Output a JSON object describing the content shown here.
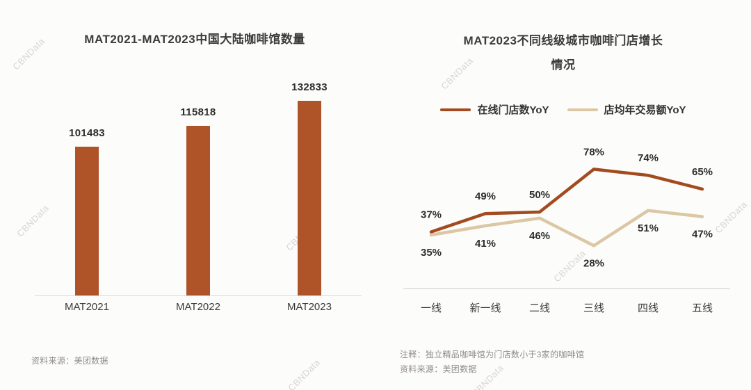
{
  "watermark": "CBNData",
  "chart_data": [
    {
      "type": "bar",
      "title": "MAT2021-MAT2023中国大陆咖啡馆数量",
      "categories": [
        "MAT2021",
        "MAT2022",
        "MAT2023"
      ],
      "values": [
        101483,
        115818,
        132833
      ],
      "bar_color": "#AF5429",
      "xlabel": "",
      "ylabel": "",
      "source": "资料来源：美团数据"
    },
    {
      "type": "line",
      "title": "MAT2023不同线级城市咖啡门店增长情况",
      "title_lines": [
        "MAT2023不同线级城市咖啡门店增长",
        "情况"
      ],
      "categories": [
        "一线",
        "新一线",
        "二线",
        "三线",
        "四线",
        "五线"
      ],
      "series": [
        {
          "name": "在线门店数YoY",
          "color": "#A34A1F",
          "values": [
            37,
            49,
            50,
            78,
            74,
            65
          ],
          "label_position": "above"
        },
        {
          "name": "店均年交易额YoY",
          "color": "#DCC7A4",
          "values": [
            35,
            41,
            46,
            28,
            51,
            47
          ],
          "label_position": "below"
        }
      ],
      "ylim": [
        0,
        100
      ],
      "legend_position": "top",
      "grid": false,
      "note": "注释：独立精品咖啡馆为门店数小于3家的咖啡馆",
      "source": "资料来源：美团数据"
    }
  ]
}
